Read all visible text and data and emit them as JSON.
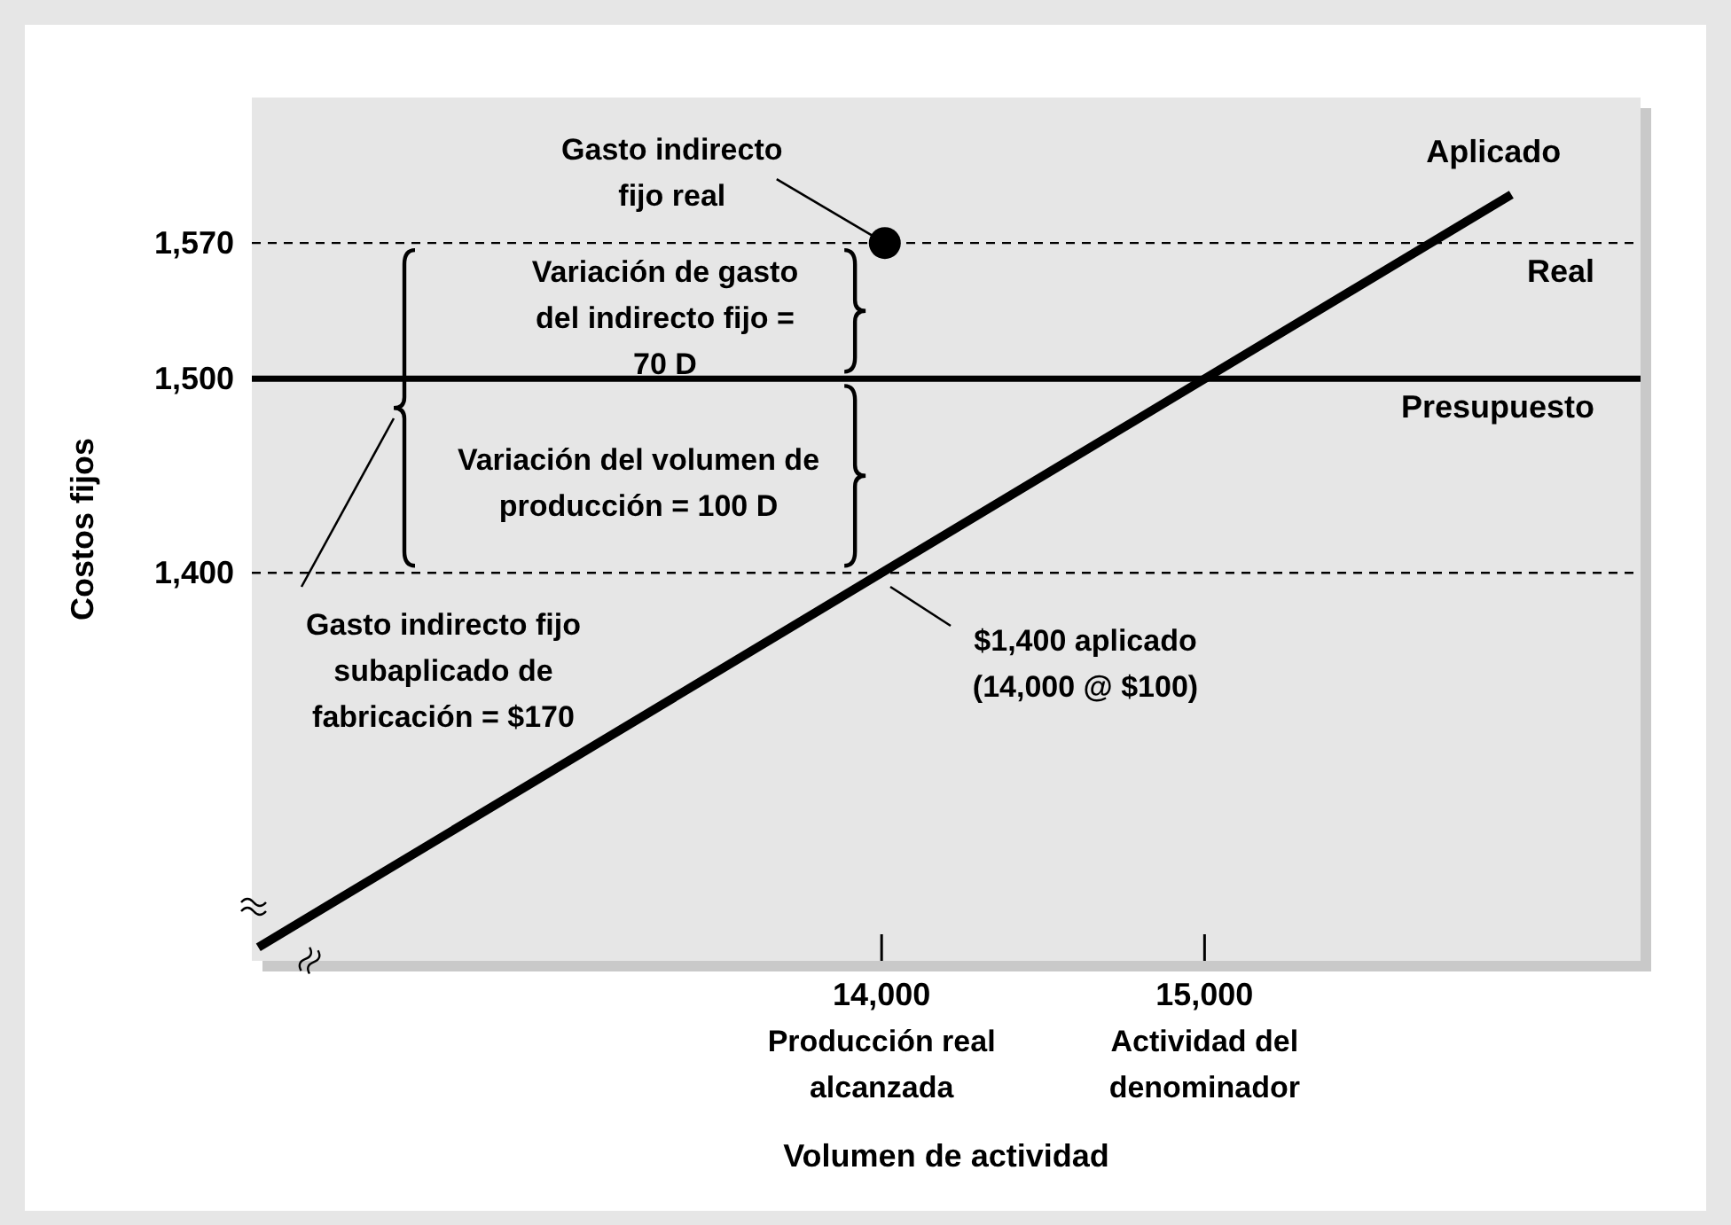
{
  "chart_data": {
    "type": "line",
    "xlabel": "Volumen de actividad",
    "ylabel": "Costos fijos",
    "xlim": [
      12050,
      16350
    ],
    "ylim": [
      1200,
      1645
    ],
    "xticks": [
      {
        "value": 14000,
        "label": "14,000"
      },
      {
        "value": 15000,
        "label": "15,000"
      }
    ],
    "yticks": [
      {
        "value": 1400,
        "label": "1,400"
      },
      {
        "value": 1500,
        "label": "1,500"
      },
      {
        "value": 1570,
        "label": "1,570"
      }
    ],
    "series": [
      {
        "name": "Aplicado",
        "color": "#000000",
        "line_style": "solid",
        "x": [
          12070,
          15950
        ],
        "values": [
          1207,
          1595
        ]
      },
      {
        "type": "scatter",
        "color": "#000000",
        "marker": "circle",
        "x": [
          14010
        ],
        "values": [
          1570
        ]
      }
    ],
    "ref_lines": [
      {
        "axis": "y",
        "value": 1570,
        "label": "Real",
        "line_style": "dashed"
      },
      {
        "axis": "y",
        "value": 1500,
        "label": "Presupuesto",
        "line_style": "solid"
      },
      {
        "axis": "y",
        "value": 1400,
        "line_style": "dashed"
      }
    ],
    "annotations": [
      {
        "text": "Gasto indirecto fijo real",
        "x": 14010,
        "y": 1570
      },
      "Variación de gasto del indirecto fijo = 70 D",
      "Variación del volumen de producción = 100 D",
      "Gasto indirecto fijo subaplicado de fabricación = $170",
      "$1,400 aplicado (14,000 @ $100)",
      "Producción real alcanzada",
      "Actividad del denominador"
    ]
  }
}
